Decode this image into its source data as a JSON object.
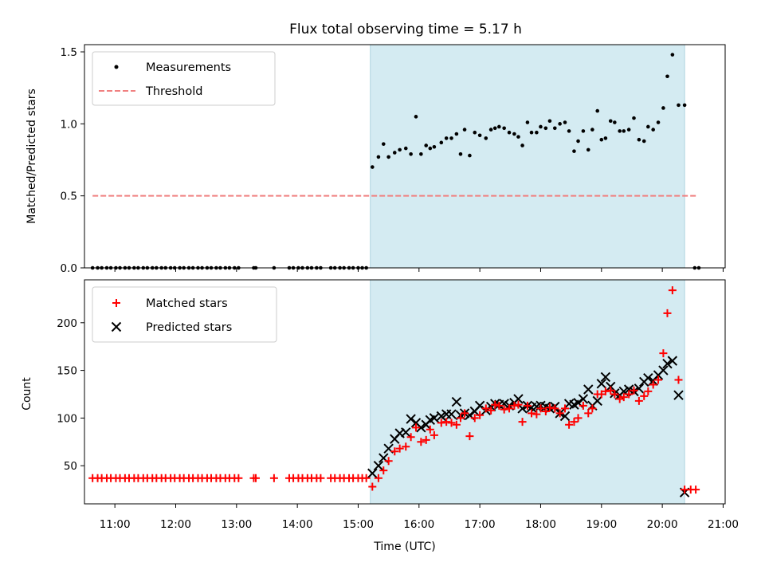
{
  "chart_data": {
    "title": "Flux total observing time = 5.17 h",
    "xlabel": "Time (UTC)",
    "x_tick_labels": [
      "11:00",
      "12:00",
      "13:00",
      "14:00",
      "15:00",
      "16:00",
      "17:00",
      "18:00",
      "19:00",
      "20:00",
      "21:00"
    ],
    "xlim": [
      "10:30",
      "21:02"
    ],
    "shaded_interval": {
      "start": "15:12",
      "end": "20:22",
      "color": "#add8e6"
    },
    "colors": {
      "measurements": "#000000",
      "threshold": "#f08080",
      "matched": "#ff0000",
      "predicted": "#000000",
      "shade": "#add8e6"
    },
    "panels": [
      {
        "type": "scatter",
        "ylabel": "Matched/Predicted stars",
        "ylim": [
          0,
          1.55
        ],
        "y_ticks": [
          0.0,
          0.5,
          1.0,
          1.5
        ],
        "y_tick_labels": [
          "0.0",
          "0.5",
          "1.0",
          "1.5"
        ],
        "legend": {
          "placement": "upper left",
          "entries": [
            "Measurements",
            "Threshold"
          ]
        },
        "threshold": {
          "name": "Threshold",
          "y": 0.5,
          "x_start": "10:38",
          "x_end": "20:34"
        },
        "measurements": {
          "name": "Measurements",
          "zero_times": [
            "10:38",
            "10:43",
            "10:47",
            "10:52",
            "10:56",
            "11:01",
            "11:05",
            "11:10",
            "11:14",
            "11:19",
            "11:23",
            "11:28",
            "11:32",
            "11:37",
            "11:41",
            "11:46",
            "11:50",
            "11:55",
            "11:59",
            "12:04",
            "12:08",
            "12:13",
            "12:17",
            "12:22",
            "12:26",
            "12:31",
            "12:35",
            "12:40",
            "12:44",
            "12:49",
            "12:53",
            "12:58",
            "13:02",
            "13:17",
            "13:19",
            "13:37",
            "13:52",
            "13:56",
            "14:01",
            "14:05",
            "14:10",
            "14:14",
            "14:19",
            "14:23",
            "14:33",
            "14:37",
            "14:42",
            "14:46",
            "14:51",
            "14:55",
            "15:00",
            "15:04",
            "15:08",
            "20:32",
            "20:36"
          ],
          "points": [
            [
              "15:14",
              0.7
            ],
            [
              "15:20",
              0.77
            ],
            [
              "15:25",
              0.86
            ],
            [
              "15:30",
              0.77
            ],
            [
              "15:36",
              0.8
            ],
            [
              "15:41",
              0.82
            ],
            [
              "15:47",
              0.83
            ],
            [
              "15:52",
              0.79
            ],
            [
              "15:57",
              1.05
            ],
            [
              "16:02",
              0.79
            ],
            [
              "16:07",
              0.85
            ],
            [
              "16:11",
              0.83
            ],
            [
              "16:15",
              0.84
            ],
            [
              "16:22",
              0.87
            ],
            [
              "16:27",
              0.9
            ],
            [
              "16:32",
              0.9
            ],
            [
              "16:37",
              0.93
            ],
            [
              "16:41",
              0.79
            ],
            [
              "16:45",
              0.96
            ],
            [
              "16:50",
              0.78
            ],
            [
              "16:55",
              0.94
            ],
            [
              "17:00",
              0.92
            ],
            [
              "17:06",
              0.9
            ],
            [
              "17:11",
              0.96
            ],
            [
              "17:15",
              0.97
            ],
            [
              "17:19",
              0.98
            ],
            [
              "17:24",
              0.97
            ],
            [
              "17:29",
              0.94
            ],
            [
              "17:34",
              0.93
            ],
            [
              "17:38",
              0.91
            ],
            [
              "17:42",
              0.85
            ],
            [
              "17:47",
              1.01
            ],
            [
              "17:51",
              0.94
            ],
            [
              "17:56",
              0.94
            ],
            [
              "18:00",
              0.98
            ],
            [
              "18:05",
              0.97
            ],
            [
              "18:09",
              1.02
            ],
            [
              "18:14",
              0.97
            ],
            [
              "18:19",
              1.0
            ],
            [
              "18:24",
              1.01
            ],
            [
              "18:28",
              0.95
            ],
            [
              "18:33",
              0.81
            ],
            [
              "18:37",
              0.88
            ],
            [
              "18:42",
              0.95
            ],
            [
              "18:47",
              0.82
            ],
            [
              "18:51",
              0.96
            ],
            [
              "18:56",
              1.09
            ],
            [
              "19:00",
              0.89
            ],
            [
              "19:04",
              0.9
            ],
            [
              "19:09",
              1.02
            ],
            [
              "19:13",
              1.01
            ],
            [
              "19:18",
              0.95
            ],
            [
              "19:22",
              0.95
            ],
            [
              "19:27",
              0.96
            ],
            [
              "19:32",
              1.04
            ],
            [
              "19:37",
              0.89
            ],
            [
              "19:42",
              0.88
            ],
            [
              "19:46",
              0.98
            ],
            [
              "19:51",
              0.96
            ],
            [
              "19:56",
              1.01
            ],
            [
              "20:01",
              1.11
            ],
            [
              "20:05",
              1.33
            ],
            [
              "20:10",
              1.48
            ],
            [
              "20:16",
              1.13
            ],
            [
              "20:22",
              1.13
            ]
          ]
        }
      },
      {
        "type": "scatter",
        "ylabel": "Count",
        "ylim": [
          10,
          245
        ],
        "y_ticks": [
          50,
          100,
          150,
          200
        ],
        "y_tick_labels": [
          "50",
          "100",
          "150",
          "200"
        ],
        "legend": {
          "placement": "upper left",
          "entries": [
            "Matched stars",
            "Predicted stars"
          ]
        },
        "matched": {
          "name": "Matched stars",
          "constant_value": 37,
          "constant_times": [
            "10:38",
            "10:43",
            "10:47",
            "10:52",
            "10:56",
            "11:01",
            "11:05",
            "11:10",
            "11:14",
            "11:19",
            "11:23",
            "11:28",
            "11:32",
            "11:37",
            "11:41",
            "11:46",
            "11:50",
            "11:55",
            "11:59",
            "12:04",
            "12:08",
            "12:13",
            "12:17",
            "12:22",
            "12:26",
            "12:31",
            "12:35",
            "12:40",
            "12:44",
            "12:49",
            "12:53",
            "12:58",
            "13:02",
            "13:17",
            "13:19",
            "13:37",
            "13:52",
            "13:56",
            "14:01",
            "14:05",
            "14:10",
            "14:14",
            "14:19",
            "14:23",
            "14:33",
            "14:37",
            "14:42",
            "14:46",
            "14:51",
            "14:55",
            "15:00",
            "15:04",
            "15:08"
          ],
          "points": [
            [
              "15:14",
              28
            ],
            [
              "15:20",
              37
            ],
            [
              "15:25",
              45
            ],
            [
              "15:30",
              55
            ],
            [
              "15:36",
              65
            ],
            [
              "15:41",
              68
            ],
            [
              "15:47",
              70
            ],
            [
              "15:52",
              80
            ],
            [
              "15:57",
              90
            ],
            [
              "16:02",
              75
            ],
            [
              "16:07",
              77
            ],
            [
              "16:11",
              88
            ],
            [
              "16:15",
              82
            ],
            [
              "16:22",
              95
            ],
            [
              "16:27",
              96
            ],
            [
              "16:32",
              95
            ],
            [
              "16:37",
              93
            ],
            [
              "16:41",
              100
            ],
            [
              "16:45",
              105
            ],
            [
              "16:50",
              81
            ],
            [
              "16:55",
              100
            ],
            [
              "17:00",
              103
            ],
            [
              "17:06",
              110
            ],
            [
              "17:11",
              108
            ],
            [
              "17:15",
              114
            ],
            [
              "17:19",
              113
            ],
            [
              "17:24",
              109
            ],
            [
              "17:29",
              110
            ],
            [
              "17:34",
              113
            ],
            [
              "17:38",
              114
            ],
            [
              "17:42",
              96
            ],
            [
              "17:47",
              113
            ],
            [
              "17:51",
              105
            ],
            [
              "17:56",
              104
            ],
            [
              "18:00",
              110
            ],
            [
              "18:05",
              107
            ],
            [
              "18:09",
              111
            ],
            [
              "18:14",
              110
            ],
            [
              "18:19",
              105
            ],
            [
              "18:24",
              110
            ],
            [
              "18:28",
              93
            ],
            [
              "18:33",
              96
            ],
            [
              "18:37",
              100
            ],
            [
              "18:42",
              113
            ],
            [
              "18:47",
              105
            ],
            [
              "18:51",
              110
            ],
            [
              "18:56",
              125
            ],
            [
              "19:00",
              125
            ],
            [
              "19:04",
              128
            ],
            [
              "19:09",
              129
            ],
            [
              "19:13",
              125
            ],
            [
              "19:18",
              120
            ],
            [
              "19:22",
              122
            ],
            [
              "19:27",
              125
            ],
            [
              "19:32",
              129
            ],
            [
              "19:37",
              118
            ],
            [
              "19:42",
              123
            ],
            [
              "19:46",
              128
            ],
            [
              "19:51",
              135
            ],
            [
              "19:56",
              140
            ],
            [
              "20:01",
              168
            ],
            [
              "20:05",
              210
            ],
            [
              "20:10",
              234
            ],
            [
              "20:16",
              140
            ],
            [
              "20:22",
              25
            ],
            [
              "20:28",
              25
            ],
            [
              "20:33",
              25
            ]
          ]
        },
        "predicted": {
          "name": "Predicted stars",
          "points": [
            [
              "15:14",
              42
            ],
            [
              "15:20",
              50
            ],
            [
              "15:25",
              58
            ],
            [
              "15:30",
              68
            ],
            [
              "15:36",
              78
            ],
            [
              "15:41",
              84
            ],
            [
              "15:47",
              85
            ],
            [
              "15:52",
              99
            ],
            [
              "15:57",
              95
            ],
            [
              "16:02",
              90
            ],
            [
              "16:07",
              93
            ],
            [
              "16:11",
              98
            ],
            [
              "16:15",
              100
            ],
            [
              "16:22",
              102
            ],
            [
              "16:27",
              104
            ],
            [
              "16:32",
              104
            ],
            [
              "16:37",
              117
            ],
            [
              "16:41",
              103
            ],
            [
              "16:45",
              105
            ],
            [
              "16:50",
              103
            ],
            [
              "16:55",
              107
            ],
            [
              "17:00",
              113
            ],
            [
              "17:06",
              108
            ],
            [
              "17:11",
              112
            ],
            [
              "17:15",
              115
            ],
            [
              "17:19",
              114
            ],
            [
              "17:24",
              115
            ],
            [
              "17:29",
              113
            ],
            [
              "17:34",
              116
            ],
            [
              "17:38",
              120
            ],
            [
              "17:42",
              110
            ],
            [
              "17:47",
              113
            ],
            [
              "17:51",
              111
            ],
            [
              "17:56",
              112
            ],
            [
              "18:00",
              113
            ],
            [
              "18:05",
              112
            ],
            [
              "18:09",
              110
            ],
            [
              "18:14",
              112
            ],
            [
              "18:19",
              105
            ],
            [
              "18:24",
              102
            ],
            [
              "18:28",
              115
            ],
            [
              "18:33",
              114
            ],
            [
              "18:37",
              116
            ],
            [
              "18:42",
              120
            ],
            [
              "18:47",
              130
            ],
            [
              "18:51",
              113
            ],
            [
              "18:56",
              118
            ],
            [
              "19:00",
              136
            ],
            [
              "19:04",
              143
            ],
            [
              "19:09",
              133
            ],
            [
              "19:13",
              126
            ],
            [
              "19:18",
              124
            ],
            [
              "19:22",
              128
            ],
            [
              "19:27",
              130
            ],
            [
              "19:32",
              128
            ],
            [
              "19:37",
              131
            ],
            [
              "19:42",
              138
            ],
            [
              "19:46",
              142
            ],
            [
              "19:51",
              139
            ],
            [
              "19:56",
              145
            ],
            [
              "20:01",
              150
            ],
            [
              "20:05",
              157
            ],
            [
              "20:10",
              160
            ],
            [
              "20:16",
              124
            ],
            [
              "20:22",
              22
            ]
          ]
        }
      }
    ]
  }
}
